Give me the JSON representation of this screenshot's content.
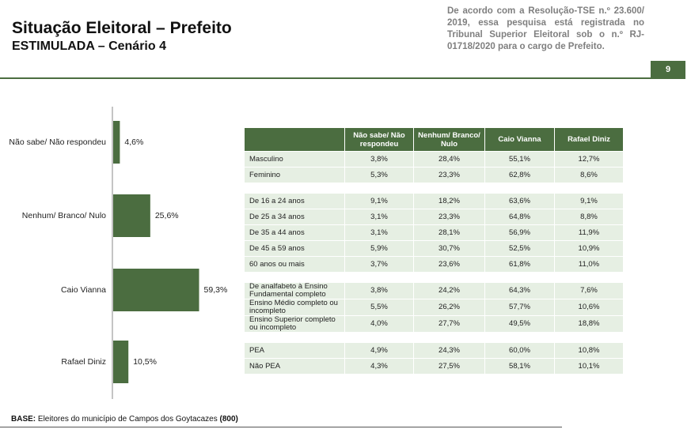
{
  "header": {
    "title": "Situação Eleitoral – Prefeito",
    "subtitle": "ESTIMULADA – Cenário 4",
    "note": "De acordo com a Resolução-TSE n.º 23.600/ 2019, essa pesquisa está registrada no Tribunal Superior Eleitoral sob o n.º RJ-01718/2020 para o cargo de Prefeito.",
    "page": "9"
  },
  "chart_data": {
    "type": "bar",
    "orientation": "horizontal",
    "categories": [
      "Não sabe/ Não respondeu",
      "Nenhum/ Branco/ Nulo",
      "Caio Vianna",
      "Rafael Diniz"
    ],
    "values": [
      4.6,
      25.6,
      59.3,
      10.5
    ],
    "value_labels": [
      "4,6%",
      "25,6%",
      "59,3%",
      "10,5%"
    ],
    "color": "#4b6d40"
  },
  "table": {
    "header": [
      "Não sabe/ Não respondeu",
      "Nenhum/ Branco/ Nulo",
      "Caio Vianna",
      "Rafael Diniz"
    ],
    "groups": [
      [
        [
          "Masculino",
          "3,8%",
          "28,4%",
          "55,1%",
          "12,7%"
        ],
        [
          "Feminino",
          "5,3%",
          "23,3%",
          "62,8%",
          "8,6%"
        ]
      ],
      [
        [
          "De 16 a 24 anos",
          "9,1%",
          "18,2%",
          "63,6%",
          "9,1%"
        ],
        [
          "De 25 a 34 anos",
          "3,1%",
          "23,3%",
          "64,8%",
          "8,8%"
        ],
        [
          "De 35 a 44 anos",
          "3,1%",
          "28,1%",
          "56,9%",
          "11,9%"
        ],
        [
          "De 45 a 59 anos",
          "5,9%",
          "30,7%",
          "52,5%",
          "10,9%"
        ],
        [
          "60 anos ou mais",
          "3,7%",
          "23,6%",
          "61,8%",
          "11,0%"
        ]
      ],
      [
        [
          "De analfabeto à Ensino Fundamental completo",
          "3,8%",
          "24,2%",
          "64,3%",
          "7,6%"
        ],
        [
          "Ensino Médio completo ou incompleto",
          "5,5%",
          "26,2%",
          "57,7%",
          "10,6%"
        ],
        [
          "Ensino Superior completo ou incompleto",
          "4,0%",
          "27,7%",
          "49,5%",
          "18,8%"
        ]
      ],
      [
        [
          "PEA",
          "4,9%",
          "24,3%",
          "60,0%",
          "10,8%"
        ],
        [
          "Não PEA",
          "4,3%",
          "27,5%",
          "58,1%",
          "10,1%"
        ]
      ]
    ]
  },
  "footer": {
    "label": "BASE:",
    "text": "Eleitores do município de Campos dos Goytacazes",
    "count": "(800)"
  }
}
